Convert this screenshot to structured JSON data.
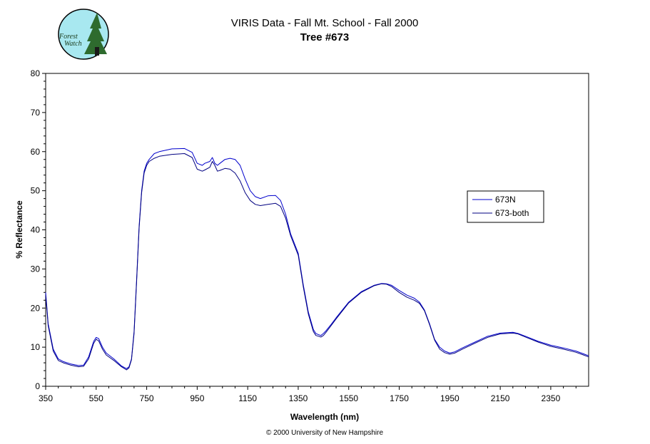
{
  "logo": {
    "text_top": "Forest",
    "text_bottom": "Watch",
    "bg_color": "#a8e8f0",
    "tree_color": "#2e6b2e"
  },
  "chart_data": {
    "type": "line",
    "title": "VIRIS Data - Fall Mt. School - Fall 2000",
    "subtitle": "Tree #673",
    "xlabel": "Wavelength (nm)",
    "ylabel": "% Reflectance",
    "xlim": [
      350,
      2500
    ],
    "ylim": [
      0,
      80
    ],
    "xticks": [
      350,
      550,
      750,
      950,
      1150,
      1350,
      1550,
      1750,
      1950,
      2150,
      2350
    ],
    "yticks": [
      0,
      10,
      20,
      30,
      40,
      50,
      60,
      70,
      80
    ],
    "grid": false,
    "legend_position": "right",
    "series": [
      {
        "name": "673N",
        "color": "#0000cc",
        "x": [
          350,
          355,
          360,
          380,
          400,
          420,
          450,
          480,
          500,
          520,
          540,
          550,
          560,
          575,
          590,
          620,
          650,
          670,
          680,
          690,
          700,
          710,
          720,
          730,
          740,
          750,
          760,
          780,
          800,
          850,
          900,
          930,
          950,
          970,
          980,
          1000,
          1010,
          1020,
          1030,
          1040,
          1060,
          1080,
          1100,
          1120,
          1140,
          1160,
          1180,
          1200,
          1230,
          1260,
          1280,
          1300,
          1320,
          1350,
          1370,
          1390,
          1410,
          1420,
          1430,
          1440,
          1450,
          1460,
          1480,
          1500,
          1550,
          1600,
          1650,
          1680,
          1700,
          1720,
          1750,
          1780,
          1810,
          1830,
          1850,
          1870,
          1890,
          1910,
          1930,
          1950,
          1970,
          2000,
          2050,
          2100,
          2150,
          2200,
          2220,
          2250,
          2300,
          2350,
          2400,
          2450,
          2480,
          2500
        ],
        "values": [
          24,
          20,
          16,
          9.5,
          7,
          6.3,
          5.7,
          5.3,
          5.4,
          7.5,
          11.5,
          12.5,
          12.2,
          10,
          8.5,
          7,
          5.2,
          4.5,
          5,
          7,
          14,
          27,
          41,
          50,
          55,
          57,
          58,
          59.5,
          60,
          60.7,
          60.8,
          59.8,
          57,
          56.5,
          57,
          57.5,
          58.5,
          57,
          56.5,
          57,
          58,
          58.3,
          58,
          56.5,
          53,
          50,
          48.5,
          48,
          48.7,
          48.8,
          47.5,
          44,
          39,
          34,
          26,
          19,
          14.5,
          13.5,
          13.2,
          13,
          13.5,
          14.2,
          15.8,
          17.5,
          21.5,
          24.2,
          25.8,
          26.3,
          26.2,
          25.8,
          24.5,
          23.3,
          22.5,
          21.5,
          19.5,
          16,
          12,
          10,
          9,
          8.5,
          8.8,
          9.8,
          11.3,
          12.8,
          13.6,
          13.8,
          13.5,
          12.8,
          11.5,
          10.5,
          9.8,
          9,
          8.3,
          7.8
        ]
      },
      {
        "name": "673-both",
        "color": "#000080",
        "x": [
          350,
          355,
          360,
          380,
          400,
          420,
          450,
          480,
          500,
          520,
          540,
          550,
          560,
          575,
          590,
          620,
          650,
          670,
          680,
          690,
          700,
          710,
          720,
          730,
          740,
          750,
          760,
          780,
          800,
          850,
          900,
          930,
          950,
          970,
          980,
          1000,
          1010,
          1020,
          1030,
          1040,
          1060,
          1080,
          1100,
          1120,
          1140,
          1160,
          1180,
          1200,
          1230,
          1260,
          1280,
          1300,
          1320,
          1350,
          1370,
          1390,
          1410,
          1420,
          1430,
          1440,
          1450,
          1460,
          1480,
          1500,
          1550,
          1600,
          1650,
          1680,
          1700,
          1720,
          1750,
          1780,
          1810,
          1830,
          1850,
          1870,
          1890,
          1910,
          1930,
          1950,
          1970,
          2000,
          2050,
          2100,
          2150,
          2200,
          2220,
          2250,
          2300,
          2350,
          2400,
          2450,
          2480,
          2500
        ],
        "values": [
          23,
          19.5,
          15.5,
          9,
          6.6,
          6,
          5.4,
          5,
          5.1,
          7,
          11,
          12,
          11.6,
          9.5,
          8,
          6.6,
          5,
          4.2,
          4.7,
          6.8,
          13.5,
          26.5,
          40.5,
          49.5,
          54.5,
          56.5,
          57.5,
          58.3,
          58.8,
          59.3,
          59.5,
          58.5,
          55.5,
          55,
          55.3,
          56,
          57.5,
          56.5,
          55,
          55.2,
          55.7,
          55.5,
          54.5,
          52.5,
          49.5,
          47.5,
          46.5,
          46.2,
          46.5,
          46.8,
          46,
          43,
          38.5,
          33.5,
          25.5,
          18.5,
          14,
          13,
          12.8,
          12.6,
          13,
          13.8,
          15.5,
          17.2,
          21.3,
          24,
          25.7,
          26.2,
          26.1,
          25.5,
          24,
          22.8,
          22,
          21.2,
          19.3,
          15.8,
          11.8,
          9.5,
          8.6,
          8.2,
          8.5,
          9.5,
          11,
          12.5,
          13.4,
          13.6,
          13.4,
          12.6,
          11.3,
          10.2,
          9.5,
          8.7,
          8,
          7.5
        ]
      }
    ]
  },
  "credit": "© 2000 University of New Hampshire"
}
